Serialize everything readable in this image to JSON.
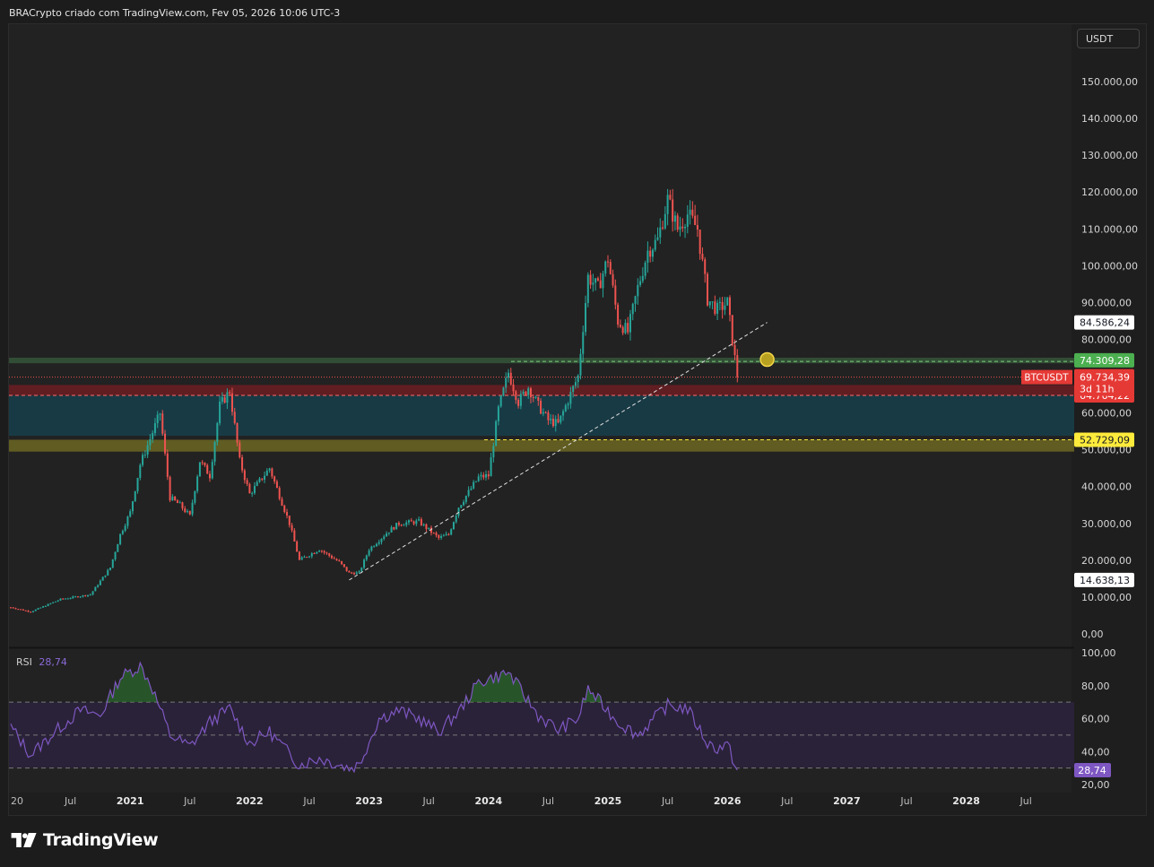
{
  "header": {
    "title": "BRACrypto criado com TradingView.com, Fev 05, 2026 10:06 UTC-3"
  },
  "currency_button": "USDT",
  "footer": {
    "brand": "TradingView"
  },
  "rsi": {
    "label": "RSI",
    "value": "28,74"
  },
  "colors": {
    "up": "#26a69a",
    "down": "#ef5350",
    "rsi": "#7e57c2",
    "rsi_band": "#2a2238",
    "zone_green": "#35553a",
    "zone_red": "#6b1d22",
    "zone_teal": "#173d48",
    "zone_olive": "#6b6622",
    "trend_line": "#e0e0e0"
  },
  "price_labels": [
    {
      "name": "price-label-high-marker",
      "text": "84.586,24",
      "value": 84586.24,
      "bg": "#ffffff",
      "fg": "#131722"
    },
    {
      "name": "price-label-green-zone",
      "text": "74.309,28",
      "value": 74309.28,
      "bg": "#4caf50",
      "fg": "#ffffff"
    },
    {
      "name": "price-label-red-zone",
      "text": "64.764,22",
      "value": 64764.22,
      "bg": "#e53935",
      "fg": "#ffffff"
    },
    {
      "name": "price-label-yellow-zone",
      "text": "52.729,09",
      "value": 52729.09,
      "bg": "#ffeb3b",
      "fg": "#131722"
    },
    {
      "name": "price-label-low-marker",
      "text": "14.638,13",
      "value": 14638.13,
      "bg": "#ffffff",
      "fg": "#131722"
    }
  ],
  "current_price": {
    "symbol": "BTCUSDT",
    "price": "69.734,39",
    "countdown": "3d 11h",
    "value": 69734.39
  },
  "chart_data": [
    {
      "type": "candlestick",
      "symbol": "BTCUSDT",
      "y_ticks": [
        "150.000,00",
        "140.000,00",
        "130.000,00",
        "120.000,00",
        "110.000,00",
        "100.000,00",
        "90.000,00",
        "80.000,00",
        "70.000,00",
        "60.000,00",
        "50.000,00",
        "40.000,00",
        "30.000,00",
        "20.000,00",
        "10.000,00",
        "0,00"
      ],
      "ylim": [
        0,
        150000
      ],
      "x_ticks": [
        "20",
        "Jul",
        "2021",
        "Jul",
        "2022",
        "Jul",
        "2023",
        "Jul",
        "2024",
        "Jul",
        "2025",
        "Jul",
        "2026",
        "Jul",
        "2027",
        "Jul",
        "2028",
        "Jul"
      ],
      "xlim": [
        "2020-01",
        "2028-09"
      ],
      "anchors": [
        [
          "2020-01",
          7200
        ],
        [
          "2020-03",
          6000
        ],
        [
          "2020-06",
          9400
        ],
        [
          "2020-09",
          10700
        ],
        [
          "2020-11",
          18000
        ],
        [
          "2020-12",
          27000
        ],
        [
          "2021-01",
          33000
        ],
        [
          "2021-02",
          46000
        ],
        [
          "2021-04",
          60000
        ],
        [
          "2021-05",
          37000
        ],
        [
          "2021-06",
          35000
        ],
        [
          "2021-07",
          32000
        ],
        [
          "2021-08",
          47000
        ],
        [
          "2021-09",
          43000
        ],
        [
          "2021-10",
          62000
        ],
        [
          "2021-11",
          66000
        ],
        [
          "2021-12",
          47000
        ],
        [
          "2022-01",
          38000
        ],
        [
          "2022-03",
          45000
        ],
        [
          "2022-05",
          30000
        ],
        [
          "2022-06",
          20000
        ],
        [
          "2022-08",
          23000
        ],
        [
          "2022-10",
          19500
        ],
        [
          "2022-11",
          16500
        ],
        [
          "2022-12",
          16600
        ],
        [
          "2023-01",
          23000
        ],
        [
          "2023-03",
          28000
        ],
        [
          "2023-04",
          30000
        ],
        [
          "2023-06",
          30500
        ],
        [
          "2023-08",
          26000
        ],
        [
          "2023-09",
          27000
        ],
        [
          "2023-10",
          34500
        ],
        [
          "2023-12",
          42500
        ],
        [
          "2024-01",
          43000
        ],
        [
          "2024-02",
          61000
        ],
        [
          "2024-03",
          71000
        ],
        [
          "2024-04",
          63000
        ],
        [
          "2024-05",
          67000
        ],
        [
          "2024-06",
          62000
        ],
        [
          "2024-07",
          58000
        ],
        [
          "2024-08",
          57000
        ],
        [
          "2024-09",
          63500
        ],
        [
          "2024-10",
          70000
        ],
        [
          "2024-11",
          97000
        ],
        [
          "2024-12",
          94000
        ],
        [
          "2025-01",
          102000
        ],
        [
          "2025-02",
          85000
        ],
        [
          "2025-03",
          82000
        ],
        [
          "2025-04",
          94000
        ],
        [
          "2025-05",
          104000
        ],
        [
          "2025-06",
          107000
        ],
        [
          "2025-07",
          118000
        ],
        [
          "2025-08",
          110000
        ],
        [
          "2025-09",
          114000
        ],
        [
          "2025-10",
          110000
        ],
        [
          "2025-11",
          91000
        ],
        [
          "2025-12",
          88000
        ],
        [
          "2026-01",
          90000
        ],
        [
          "2026-02",
          69734
        ]
      ],
      "zones": [
        {
          "name": "green-zone",
          "from": 73500,
          "to": 75000
        },
        {
          "name": "red-zone",
          "from": 64764,
          "to": 67600
        },
        {
          "name": "teal-zone",
          "from": 53800,
          "to": 64764
        },
        {
          "name": "olive-zone",
          "from": 49500,
          "to": 52729
        }
      ],
      "trendline": {
        "from": [
          "2022-11",
          14638
        ],
        "to": [
          "2026-05",
          84586
        ]
      }
    },
    {
      "type": "line",
      "name": "RSI",
      "value": 28.74,
      "y_ticks": [
        "100,00",
        "80,00",
        "60,00",
        "40,00",
        "20,00"
      ],
      "ylim": [
        20,
        100
      ],
      "bands": [
        70,
        50,
        30
      ],
      "anchors": [
        [
          "2020-01",
          55
        ],
        [
          "2020-03",
          38
        ],
        [
          "2020-06",
          55
        ],
        [
          "2020-08",
          65
        ],
        [
          "2020-10",
          62
        ],
        [
          "2020-12",
          85
        ],
        [
          "2021-02",
          92
        ],
        [
          "2021-03",
          82
        ],
        [
          "2021-05",
          50
        ],
        [
          "2021-07",
          43
        ],
        [
          "2021-09",
          58
        ],
        [
          "2021-11",
          66
        ],
        [
          "2022-01",
          45
        ],
        [
          "2022-03",
          52
        ],
        [
          "2022-06",
          32
        ],
        [
          "2022-08",
          36
        ],
        [
          "2022-11",
          30
        ],
        [
          "2022-12",
          32
        ],
        [
          "2023-02",
          60
        ],
        [
          "2023-04",
          65
        ],
        [
          "2023-06",
          60
        ],
        [
          "2023-08",
          52
        ],
        [
          "2023-10",
          64
        ],
        [
          "2023-12",
          82
        ],
        [
          "2024-03",
          88
        ],
        [
          "2024-06",
          62
        ],
        [
          "2024-08",
          53
        ],
        [
          "2024-10",
          60
        ],
        [
          "2024-11",
          78
        ],
        [
          "2025-02",
          58
        ],
        [
          "2025-04",
          50
        ],
        [
          "2025-07",
          68
        ],
        [
          "2025-09",
          66
        ],
        [
          "2025-11",
          45
        ],
        [
          "2025-12",
          42
        ],
        [
          "2026-01",
          44
        ],
        [
          "2026-02",
          28.74
        ]
      ]
    }
  ]
}
